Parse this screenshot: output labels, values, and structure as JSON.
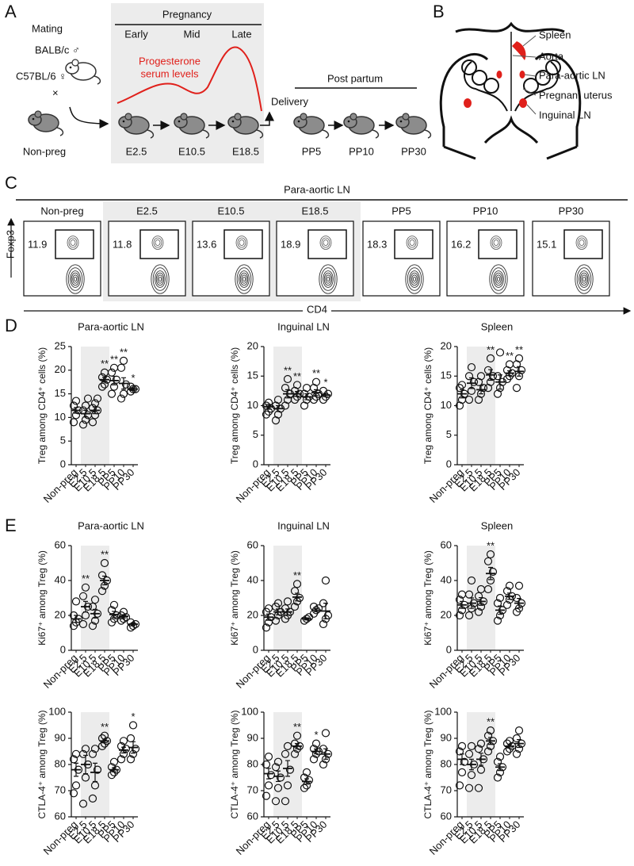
{
  "panel_a": {
    "letter": "A",
    "mating": "Mating",
    "male": "BALB/c ♂",
    "female": "C57BL/6 ♀",
    "cross": "×",
    "nonpreg": "Non-preg",
    "pregnancy": "Pregnancy",
    "stages": [
      "Early",
      "Mid",
      "Late"
    ],
    "progesterone": [
      "Progesterone",
      "serum levels"
    ],
    "timepoints": [
      "E2.5",
      "E10.5",
      "E18.5"
    ],
    "delivery": "Delivery",
    "post_partum": "Post partum",
    "pp": [
      "PP5",
      "PP10",
      "PP30"
    ]
  },
  "panel_b": {
    "letter": "B",
    "labels": [
      "Spleen",
      "Aorta",
      "Para-aortic LN",
      "Pregnant uterus",
      "Inguinal LN"
    ]
  },
  "panel_c": {
    "letter": "C",
    "title": "Para-aortic LN",
    "groups": [
      "Non-preg",
      "E2.5",
      "E10.5",
      "E18.5",
      "PP5",
      "PP10",
      "PP30"
    ],
    "percentages": [
      11.9,
      11.8,
      13.6,
      18.9,
      18.3,
      16.2,
      15.1
    ],
    "y_axis": "Foxp3",
    "x_axis": "CD4"
  },
  "panel_d": {
    "letter": "D"
  },
  "panel_e": {
    "letter": "E"
  },
  "chart_data": [
    {
      "type": "dot",
      "title": "Para-aortic LN",
      "ylabel": "Treg among CD4⁺ cells (%)",
      "categories": [
        "Non-preg",
        "E2.5",
        "E10.5",
        "E18.5",
        "PP5",
        "PP10",
        "PP30"
      ],
      "values": [
        11.5,
        10.8,
        11.5,
        18,
        17.8,
        17.2,
        16
      ],
      "errors": [
        0.6,
        0.7,
        0.7,
        0.5,
        0.9,
        1.2,
        0.3
      ],
      "points": [
        [
          9,
          10.5,
          11.5,
          12.5,
          13.5
        ],
        [
          8.5,
          9.5,
          10.5,
          11.5,
          12.5,
          14
        ],
        [
          9,
          10.5,
          11.5,
          12,
          13,
          14
        ],
        [
          16.5,
          17,
          18,
          18.5,
          19.5
        ],
        [
          15,
          16.5,
          18,
          19.5,
          20.5
        ],
        [
          14,
          15,
          17,
          20.5,
          22
        ],
        [
          15.5,
          16,
          16,
          16.5
        ]
      ],
      "annotations": [
        null,
        null,
        null,
        "**",
        "**",
        "**",
        "*"
      ],
      "ylim": [
        0,
        25
      ],
      "yticks": [
        0,
        5,
        10,
        15,
        20,
        25
      ]
    },
    {
      "type": "dot",
      "title": "Inguinal LN",
      "ylabel": "Treg among CD4⁺ cells (%)",
      "categories": [
        "Non-preg",
        "E2.5",
        "E10.5",
        "E18.5",
        "PP5",
        "PP10",
        "PP30"
      ],
      "values": [
        9.8,
        9.5,
        12,
        12,
        11.5,
        12.2,
        11.8
      ],
      "errors": [
        0.4,
        0.5,
        0.7,
        0.4,
        0.5,
        0.5,
        0.3
      ],
      "points": [
        [
          8.5,
          9,
          9.5,
          10,
          10.5
        ],
        [
          7.5,
          8.5,
          9.5,
          10,
          11
        ],
        [
          10,
          11,
          12,
          13,
          14.5
        ],
        [
          11,
          11.5,
          12,
          12.5,
          13.5
        ],
        [
          10,
          11,
          11.5,
          12,
          13
        ],
        [
          11,
          11.5,
          12,
          13,
          14
        ],
        [
          11,
          11.5,
          12,
          12.5
        ]
      ],
      "annotations": [
        null,
        null,
        "**",
        "**",
        null,
        "**",
        "*"
      ],
      "ylim": [
        0,
        20
      ],
      "yticks": [
        0,
        5,
        10,
        15,
        20
      ]
    },
    {
      "type": "dot",
      "title": "Spleen",
      "ylabel": "Treg among CD4⁺ cells (%)",
      "categories": [
        "Non-preg",
        "E2.5",
        "E10.5",
        "E18.5",
        "PP5",
        "PP10",
        "PP30"
      ],
      "values": [
        12,
        13.8,
        12.7,
        15.2,
        14,
        15.5,
        15.8
      ],
      "errors": [
        0.7,
        0.9,
        0.7,
        0.9,
        1.2,
        0.4,
        0.8
      ],
      "points": [
        [
          10,
          11,
          12,
          13,
          13.5
        ],
        [
          11,
          12.5,
          14,
          15,
          16.5
        ],
        [
          11,
          12,
          13,
          14,
          15
        ],
        [
          13,
          14,
          15,
          16,
          18
        ],
        [
          12,
          13,
          14,
          15,
          19
        ],
        [
          14.5,
          15,
          15.5,
          16,
          17
        ],
        [
          13,
          15,
          16,
          17,
          18
        ]
      ],
      "annotations": [
        null,
        null,
        null,
        "**",
        null,
        "**",
        "**"
      ],
      "ylim": [
        0,
        20
      ],
      "yticks": [
        0,
        5,
        10,
        15,
        20
      ]
    },
    {
      "type": "dot",
      "title": "Para-aortic LN",
      "ylabel": "Ki67⁺ among Treg (%)",
      "categories": [
        "Non-preg",
        "E2.5",
        "E10.5",
        "E18.5",
        "PP5",
        "PP10",
        "PP30"
      ],
      "values": [
        18,
        25,
        21,
        40,
        20.5,
        19.5,
        15
      ],
      "errors": [
        2,
        3,
        2.5,
        2.5,
        1.8,
        0.9,
        0.7
      ],
      "points": [
        [
          14,
          16,
          18,
          20,
          28
        ],
        [
          15,
          20,
          25,
          31,
          36
        ],
        [
          14,
          17,
          21,
          25,
          29
        ],
        [
          34,
          37,
          40,
          43,
          50
        ],
        [
          16,
          18,
          20,
          23,
          26
        ],
        [
          17,
          18,
          19,
          20,
          22
        ],
        [
          13,
          14,
          15,
          16
        ]
      ],
      "annotations": [
        null,
        "**",
        null,
        "**",
        null,
        null,
        null
      ],
      "ylim": [
        0,
        60
      ],
      "yticks": [
        0,
        20,
        40,
        60
      ]
    },
    {
      "type": "dot",
      "title": "Inguinal LN",
      "ylabel": "Ki67⁺ among Treg (%)",
      "categories": [
        "Non-preg",
        "E2.5",
        "E10.5",
        "E18.5",
        "PP5",
        "PP10",
        "PP30"
      ],
      "values": [
        19,
        22,
        22,
        30.5,
        18,
        23,
        22.5
      ],
      "errors": [
        1.8,
        1.7,
        1.7,
        2.2,
        0.6,
        0.9,
        4.5
      ],
      "points": [
        [
          13,
          16,
          19,
          22,
          24
        ],
        [
          17,
          20,
          22,
          25,
          27
        ],
        [
          18,
          20,
          22,
          24,
          28
        ],
        [
          25,
          28,
          30,
          34,
          38
        ],
        [
          17,
          18,
          19
        ],
        [
          21,
          23,
          24,
          25
        ],
        [
          15,
          18,
          20,
          27,
          40
        ]
      ],
      "annotations": [
        null,
        null,
        null,
        "**",
        null,
        null,
        null
      ],
      "ylim": [
        0,
        60
      ],
      "yticks": [
        0,
        20,
        40,
        60
      ]
    },
    {
      "type": "dot",
      "title": "Spleen",
      "ylabel": "Ki67⁺ among Treg (%)",
      "categories": [
        "Non-preg",
        "E2.5",
        "E10.5",
        "E18.5",
        "PP5",
        "PP10",
        "PP30"
      ],
      "values": [
        26,
        27,
        28,
        44,
        23,
        31,
        27
      ],
      "errors": [
        2,
        3,
        2.2,
        3.5,
        2.4,
        1.8,
        2.7
      ],
      "points": [
        [
          20,
          23,
          26,
          29,
          32
        ],
        [
          20,
          24,
          27,
          32,
          40
        ],
        [
          22,
          25,
          28,
          31,
          35
        ],
        [
          35,
          40,
          45,
          51,
          55
        ],
        [
          17,
          20,
          23,
          27,
          30
        ],
        [
          26,
          29,
          31,
          34,
          37
        ],
        [
          22,
          24,
          27,
          30,
          37
        ]
      ],
      "annotations": [
        null,
        null,
        null,
        "**",
        null,
        null,
        null
      ],
      "ylim": [
        0,
        60
      ],
      "yticks": [
        0,
        20,
        40,
        60
      ]
    },
    {
      "type": "dot",
      "ylabel": "CTLA-4⁺ among Treg (%)",
      "categories": [
        "Non-preg",
        "E2.5",
        "E10.5",
        "E18.5",
        "PP5",
        "PP10",
        "PP30"
      ],
      "values": [
        78,
        80,
        77,
        89,
        78,
        85.5,
        86.5
      ],
      "errors": [
        2.5,
        3.5,
        3.5,
        0.7,
        0.8,
        1.1,
        2.2
      ],
      "points": [
        [
          69,
          72,
          78,
          82,
          84
        ],
        [
          65,
          75,
          80,
          84,
          86
        ],
        [
          67,
          72,
          78,
          84,
          86
        ],
        [
          87,
          88,
          89,
          90,
          91
        ],
        [
          76,
          77,
          78,
          79,
          81
        ],
        [
          82,
          84,
          86,
          87,
          89
        ],
        [
          82,
          84,
          86,
          90,
          95
        ]
      ],
      "annotations": [
        null,
        null,
        null,
        "**",
        null,
        null,
        "*"
      ],
      "ylim": [
        60,
        100
      ],
      "yticks": [
        60,
        70,
        80,
        90,
        100
      ]
    },
    {
      "type": "dot",
      "ylabel": "CTLA-4⁺ among Treg (%)",
      "categories": [
        "Non-preg",
        "E2.5",
        "E10.5",
        "E18.5",
        "PP5",
        "PP10",
        "PP30"
      ],
      "values": [
        76.5,
        75.5,
        78.5,
        87,
        73.5,
        85,
        84
      ],
      "errors": [
        2,
        2,
        3,
        1,
        1,
        0.9,
        2
      ],
      "points": [
        [
          68,
          72,
          76,
          80,
          83
        ],
        [
          66,
          71,
          75,
          79,
          81
        ],
        [
          66,
          72,
          78,
          84,
          87
        ],
        [
          84,
          86,
          87,
          88,
          91
        ],
        [
          71,
          72,
          74,
          75,
          77
        ],
        [
          82,
          84,
          85,
          86,
          88
        ],
        [
          80,
          82,
          84,
          86,
          92
        ]
      ],
      "annotations": [
        null,
        null,
        null,
        "**",
        null,
        "*",
        null
      ],
      "ylim": [
        60,
        100
      ],
      "yticks": [
        60,
        70,
        80,
        90,
        100
      ]
    },
    {
      "type": "dot",
      "ylabel": "CTLA-4⁺ among Treg (%)",
      "categories": [
        "Non-preg",
        "E2.5",
        "E10.5",
        "E18.5",
        "PP5",
        "PP10",
        "PP30"
      ],
      "values": [
        82,
        80,
        82,
        89,
        79,
        87,
        88
      ],
      "errors": [
        2,
        2,
        2.3,
        1.3,
        1.3,
        0.7,
        1.5
      ],
      "points": [
        [
          72,
          77,
          81,
          85,
          87
        ],
        [
          71,
          76,
          80,
          84,
          87
        ],
        [
          71,
          78,
          82,
          86,
          88
        ],
        [
          85,
          87,
          89,
          91,
          93
        ],
        [
          75,
          77,
          79,
          81,
          83
        ],
        [
          85,
          86,
          87,
          88,
          89
        ],
        [
          84,
          86,
          88,
          90,
          93
        ]
      ],
      "annotations": [
        null,
        null,
        null,
        "**",
        null,
        null,
        null
      ],
      "ylim": [
        60,
        100
      ],
      "yticks": [
        60,
        70,
        80,
        90,
        100
      ]
    }
  ]
}
